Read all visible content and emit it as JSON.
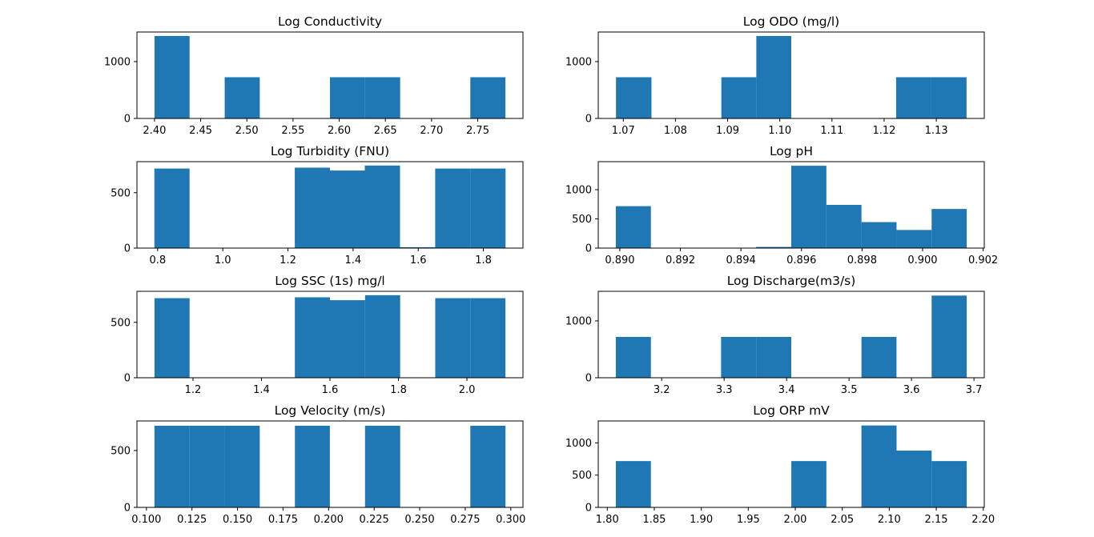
{
  "chart_data": [
    {
      "type": "bar",
      "title": "Log Conductivity",
      "xlabel": "",
      "ylabel": "",
      "xlim": [
        2.381,
        2.799
      ],
      "ylim": [
        0,
        1520
      ],
      "xticks": [
        2.4,
        2.45,
        2.5,
        2.55,
        2.6,
        2.65,
        2.7,
        2.75
      ],
      "xtick_labels": [
        "2.40",
        "2.45",
        "2.50",
        "2.55",
        "2.60",
        "2.65",
        "2.70",
        "2.75"
      ],
      "yticks": [
        0,
        1000
      ],
      "ytick_labels": [
        "0",
        "1000"
      ],
      "bins": [
        2.4,
        2.438,
        2.476,
        2.514,
        2.552,
        2.59,
        2.628,
        2.666,
        2.704,
        2.742,
        2.78
      ],
      "counts": [
        1450,
        0,
        725,
        0,
        0,
        725,
        725,
        0,
        0,
        725
      ]
    },
    {
      "type": "bar",
      "title": "Log ODO (mg/l)",
      "xlabel": "",
      "ylabel": "",
      "xlim": [
        1.0652,
        1.1392
      ],
      "ylim": [
        0,
        1520
      ],
      "xticks": [
        1.07,
        1.08,
        1.09,
        1.1,
        1.11,
        1.12,
        1.13
      ],
      "xtick_labels": [
        "1.07",
        "1.08",
        "1.09",
        "1.10",
        "1.11",
        "1.12",
        "1.13"
      ],
      "yticks": [
        0,
        1000
      ],
      "ytick_labels": [
        "0",
        "1000"
      ],
      "bins": [
        1.0686,
        1.0754,
        1.0821,
        1.0888,
        1.0955,
        1.1022,
        1.1089,
        1.1156,
        1.1223,
        1.129,
        1.1358
      ],
      "counts": [
        725,
        0,
        0,
        725,
        1450,
        0,
        0,
        0,
        725,
        725
      ]
    },
    {
      "type": "bar",
      "title": "Log Turbidity (FNU)",
      "xlabel": "",
      "ylabel": "",
      "xlim": [
        0.7365,
        1.9215
      ],
      "ylim": [
        0,
        780
      ],
      "xticks": [
        0.8,
        1.0,
        1.2,
        1.4,
        1.6,
        1.8
      ],
      "xtick_labels": [
        "0.8",
        "1.0",
        "1.2",
        "1.4",
        "1.6",
        "1.8"
      ],
      "yticks": [
        0,
        500
      ],
      "ytick_labels": [
        "0",
        "500"
      ],
      "bins": [
        0.79,
        0.898,
        1.005,
        1.113,
        1.221,
        1.329,
        1.436,
        1.544,
        1.652,
        1.76,
        1.868
      ],
      "counts": [
        718,
        0,
        0,
        0,
        726,
        700,
        745,
        8,
        718,
        718
      ]
    },
    {
      "type": "bar",
      "title": "Log pH",
      "xlabel": "",
      "ylabel": "",
      "xlim": [
        0.889287,
        0.902038
      ],
      "ylim": [
        0,
        1480
      ],
      "xticks": [
        0.89,
        0.892,
        0.894,
        0.896,
        0.898,
        0.9,
        0.902
      ],
      "xtick_labels": [
        "0.890",
        "0.892",
        "0.894",
        "0.896",
        "0.898",
        "0.900",
        "0.902"
      ],
      "yticks": [
        0,
        500,
        1000
      ],
      "ytick_labels": [
        "0",
        "500",
        "1000"
      ],
      "bins": [
        0.889867,
        0.891026,
        0.892185,
        0.893344,
        0.894503,
        0.895662,
        0.896822,
        0.897981,
        0.89914,
        0.900299,
        0.901458
      ],
      "counts": [
        718,
        0,
        0,
        0,
        20,
        1410,
        740,
        445,
        310,
        670
      ]
    },
    {
      "type": "bar",
      "title": "Log SSC (1s) mg/l",
      "xlabel": "",
      "ylabel": "",
      "xlim": [
        1.0364,
        2.1636
      ],
      "ylim": [
        0,
        780
      ],
      "xticks": [
        1.2,
        1.4,
        1.6,
        1.8,
        2.0
      ],
      "xtick_labels": [
        "1.2",
        "1.4",
        "1.6",
        "1.8",
        "2.0"
      ],
      "yticks": [
        0,
        500
      ],
      "ytick_labels": [
        "0",
        "500"
      ],
      "bins": [
        1.0876,
        1.1901,
        1.2926,
        1.395,
        1.4975,
        1.6,
        1.7025,
        1.805,
        1.9074,
        2.0099,
        2.1124
      ],
      "counts": [
        718,
        0,
        0,
        0,
        726,
        700,
        745,
        0,
        718,
        718
      ]
    },
    {
      "type": "bar",
      "title": "Log Discharge(m3/s)",
      "xlabel": "",
      "ylabel": "",
      "xlim": [
        3.0985,
        3.7165
      ],
      "ylim": [
        0,
        1520
      ],
      "xticks": [
        3.2,
        3.3,
        3.4,
        3.5,
        3.6,
        3.7
      ],
      "xtick_labels": [
        "3.2",
        "3.3",
        "3.4",
        "3.5",
        "3.6",
        "3.7"
      ],
      "yticks": [
        0,
        1000
      ],
      "ytick_labels": [
        "0",
        "1000"
      ],
      "bins": [
        3.1266,
        3.1828,
        3.239,
        3.2951,
        3.3513,
        3.4075,
        3.4637,
        3.5199,
        3.576,
        3.6322,
        3.6884
      ],
      "counts": [
        718,
        0,
        0,
        718,
        718,
        0,
        0,
        718,
        0,
        1445
      ]
    },
    {
      "type": "bar",
      "title": "Log Velocity (m/s)",
      "xlabel": "",
      "ylabel": "",
      "xlim": [
        0.0948,
        0.3067
      ],
      "ylim": [
        0,
        760
      ],
      "xticks": [
        0.1,
        0.125,
        0.15,
        0.175,
        0.2,
        0.225,
        0.25,
        0.275,
        0.3
      ],
      "xtick_labels": [
        "0.100",
        "0.125",
        "0.150",
        "0.175",
        "0.200",
        "0.225",
        "0.250",
        "0.275",
        "0.300"
      ],
      "yticks": [
        0,
        500
      ],
      "ytick_labels": [
        "0",
        "500"
      ],
      "bins": [
        0.1044,
        0.1237,
        0.1429,
        0.1622,
        0.1815,
        0.2007,
        0.22,
        0.2393,
        0.2585,
        0.2778,
        0.2971
      ],
      "counts": [
        718,
        718,
        718,
        0,
        718,
        0,
        718,
        0,
        0,
        718
      ]
    },
    {
      "type": "bar",
      "title": "Log ORP mV",
      "xlabel": "",
      "ylabel": "",
      "xlim": [
        1.7904,
        2.2011
      ],
      "ylim": [
        0,
        1340
      ],
      "xticks": [
        1.8,
        1.85,
        1.9,
        1.95,
        2.0,
        2.05,
        2.1,
        2.15,
        2.2
      ],
      "xtick_labels": [
        "1.80",
        "1.85",
        "1.90",
        "1.95",
        "2.00",
        "2.05",
        "2.10",
        "2.15",
        "2.20"
      ],
      "yticks": [
        0,
        500,
        1000
      ],
      "ytick_labels": [
        "0",
        "500",
        "1000"
      ],
      "bins": [
        1.8091,
        1.8464,
        1.8838,
        1.9211,
        1.9584,
        1.9958,
        2.0331,
        2.0704,
        2.1078,
        2.1451,
        2.1824
      ],
      "counts": [
        718,
        0,
        0,
        0,
        0,
        718,
        0,
        1270,
        880,
        718
      ]
    }
  ]
}
